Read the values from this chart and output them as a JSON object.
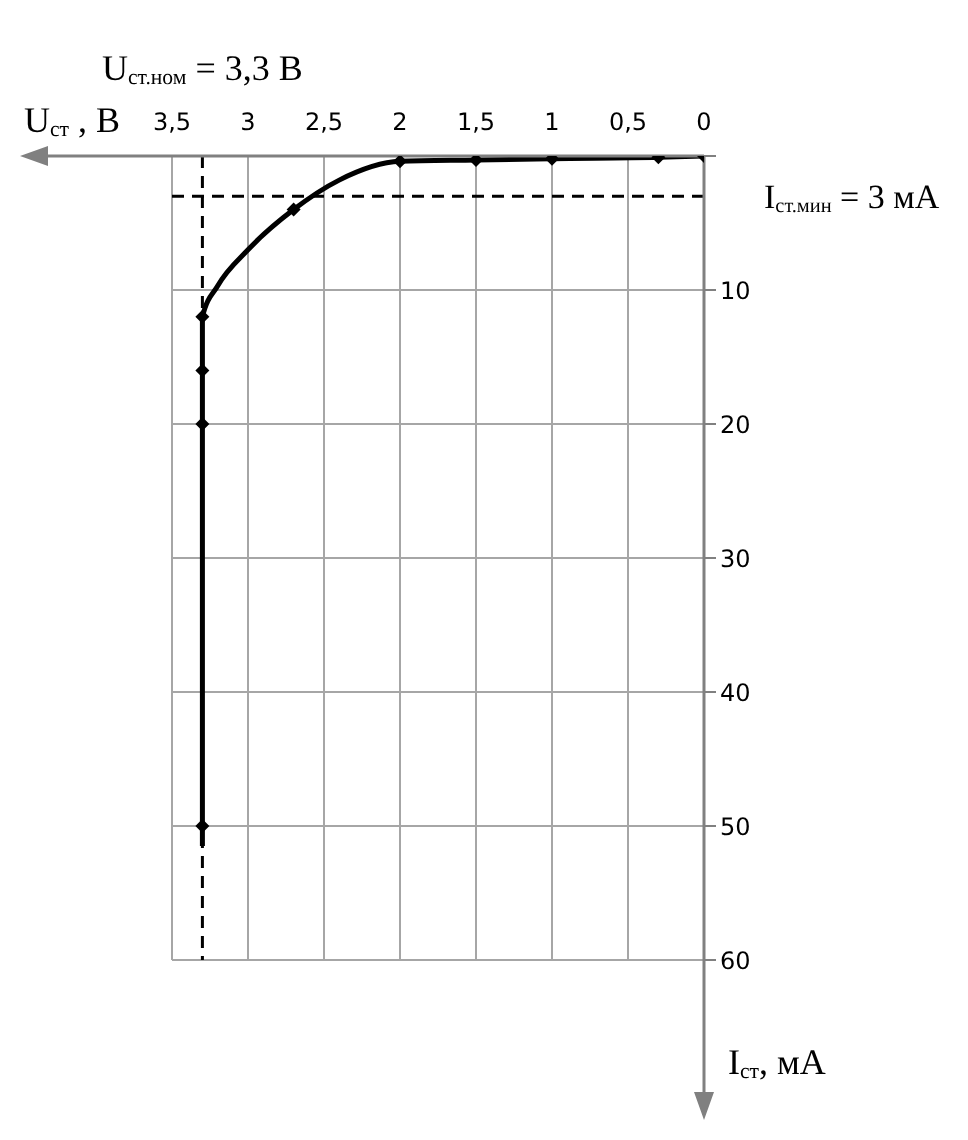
{
  "chart_data": {
    "type": "line",
    "xlabel": "U$_{ст}$ , В",
    "ylabel": "I$_{ст}$, мА",
    "xlim": [
      3.5,
      0
    ],
    "xticks": [
      {
        "value": 3.5,
        "label": "3,5"
      },
      3,
      {
        "value": 2.5,
        "label": "2,5"
      },
      2,
      {
        "value": 1.5,
        "label": "1,5"
      },
      1,
      {
        "value": 0.5,
        "label": "0,5"
      },
      0
    ],
    "ylim": [
      60,
      0
    ],
    "yticks": [
      {
        "value": 0,
        "label": null
      },
      10,
      20,
      30,
      40,
      50,
      60
    ],
    "grid": true,
    "series": [
      {
        "type": "line",
        "color": "#000000",
        "marker": "none",
        "line_style": "solid",
        "x": [
          0,
          0.3,
          1,
          1.5,
          2,
          2.4,
          2.7,
          3.0,
          3.2,
          3.3,
          3.3,
          3.3,
          3.3,
          3.3
        ],
        "values": [
          0,
          0.1,
          0.2,
          0.3,
          0.4,
          1.8,
          4,
          7,
          9.7,
          12,
          16,
          20,
          50,
          51.5
        ]
      },
      {
        "type": "scatter",
        "color": "#000000",
        "marker": "diamond",
        "x": [
          0,
          0.3,
          1,
          1.5,
          2,
          2.7,
          3.3,
          3.3,
          3.3,
          3.3
        ],
        "values": [
          0,
          0.1,
          0.2,
          0.3,
          0.4,
          4,
          12,
          16,
          20,
          50
        ]
      }
    ],
    "ref_lines": [
      {
        "axis": "x",
        "value": 3.3,
        "label": "U$_{ст.ном}$ = 3,3 В",
        "color": "#000000",
        "line_style": "dashed"
      },
      {
        "axis": "y",
        "value": 3,
        "label": "I$_{ст.мин}$ = 3 мА",
        "color": "#000000",
        "line_style": "dashed"
      }
    ]
  }
}
